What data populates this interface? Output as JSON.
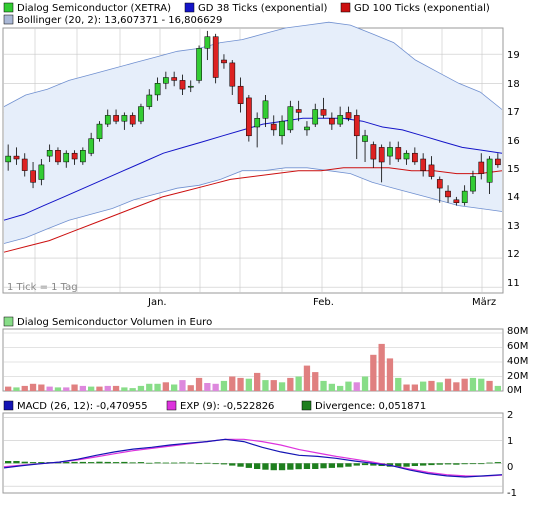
{
  "colors": {
    "candle_up": "#33cc33",
    "candle_down": "#dd2222",
    "gd38": "#1414c8",
    "gd100": "#cc1010",
    "band_fill": "#e6eefa",
    "band_line": "#7090d0",
    "vol_up": "#88dd88",
    "vol_down": "#e08080",
    "vol_neutral": "#dd88dd",
    "macd": "#1414b4",
    "exp": "#dd33dd",
    "divergence": "#1e7f1e",
    "grid": "#c8c8c8"
  },
  "price_panel": {
    "legend": [
      {
        "label": "Dialog Semiconductor (XETRA)",
        "color": "#33cc33"
      },
      {
        "label": "GD 38 Ticks (exponential)",
        "color": "#1414c8"
      },
      {
        "label": "GD 100 Ticks (exponential)",
        "color": "#cc1010"
      },
      {
        "label": "Bollinger (20, 2): 13,607371 - 16,806629",
        "color": "#aab8d6"
      }
    ],
    "note": "1 Tick = 1 Tag",
    "y_ticks": [
      "11",
      "12",
      "13",
      "14",
      "15",
      "16",
      "17",
      "18",
      "19"
    ],
    "x_ticks": [
      "Jan.",
      "Feb.",
      "März"
    ]
  },
  "volume_panel": {
    "legend": "Dialog Semiconductor Volumen in Euro",
    "y_ticks": [
      "0M",
      "20M",
      "40M",
      "60M",
      "80M"
    ]
  },
  "macd_panel": {
    "legend": [
      {
        "label": "MACD (26, 12): -0,470955",
        "color": "#1414b4"
      },
      {
        "label": "EXP (9): -0,522826",
        "color": "#dd33dd"
      },
      {
        "label": "Divergence: 0,051871",
        "color": "#1e7f1e"
      }
    ],
    "y_ticks": [
      "-1",
      "0",
      "1",
      "2"
    ]
  },
  "chart_data": [
    {
      "type": "candlestick",
      "y_range": [
        10.8,
        19.9
      ],
      "x_ticks": [
        "Jan.",
        "Feb.",
        "März"
      ],
      "ohlc": [
        {
          "o": 15.3,
          "h": 15.9,
          "l": 15.0,
          "c": 15.5
        },
        {
          "o": 15.5,
          "h": 15.8,
          "l": 15.2,
          "c": 15.4
        },
        {
          "o": 15.4,
          "h": 15.6,
          "l": 14.8,
          "c": 15.0
        },
        {
          "o": 15.0,
          "h": 15.3,
          "l": 14.4,
          "c": 14.6
        },
        {
          "o": 14.7,
          "h": 15.4,
          "l": 14.5,
          "c": 15.2
        },
        {
          "o": 15.5,
          "h": 15.9,
          "l": 15.3,
          "c": 15.7
        },
        {
          "o": 15.7,
          "h": 15.8,
          "l": 15.2,
          "c": 15.3
        },
        {
          "o": 15.3,
          "h": 15.7,
          "l": 15.1,
          "c": 15.6
        },
        {
          "o": 15.6,
          "h": 15.7,
          "l": 15.2,
          "c": 15.4
        },
        {
          "o": 15.3,
          "h": 15.8,
          "l": 15.2,
          "c": 15.7
        },
        {
          "o": 15.6,
          "h": 16.3,
          "l": 15.5,
          "c": 16.1
        },
        {
          "o": 16.1,
          "h": 16.7,
          "l": 16.0,
          "c": 16.6
        },
        {
          "o": 16.6,
          "h": 17.1,
          "l": 16.5,
          "c": 16.9
        },
        {
          "o": 16.9,
          "h": 17.1,
          "l": 16.6,
          "c": 16.7
        },
        {
          "o": 16.7,
          "h": 17.0,
          "l": 16.4,
          "c": 16.9
        },
        {
          "o": 16.9,
          "h": 17.0,
          "l": 16.5,
          "c": 16.6
        },
        {
          "o": 16.7,
          "h": 17.3,
          "l": 16.6,
          "c": 17.2
        },
        {
          "o": 17.2,
          "h": 17.8,
          "l": 17.1,
          "c": 17.6
        },
        {
          "o": 17.6,
          "h": 18.2,
          "l": 17.4,
          "c": 18.0
        },
        {
          "o": 18.0,
          "h": 18.4,
          "l": 17.8,
          "c": 18.2
        },
        {
          "o": 18.2,
          "h": 18.4,
          "l": 17.9,
          "c": 18.1
        },
        {
          "o": 18.1,
          "h": 18.3,
          "l": 17.6,
          "c": 17.8
        },
        {
          "o": 17.9,
          "h": 18.1,
          "l": 17.7,
          "c": 17.9
        },
        {
          "o": 18.1,
          "h": 19.3,
          "l": 18.0,
          "c": 19.2
        },
        {
          "o": 19.2,
          "h": 19.8,
          "l": 18.8,
          "c": 19.6
        },
        {
          "o": 19.6,
          "h": 19.7,
          "l": 18.0,
          "c": 18.2
        },
        {
          "o": 18.8,
          "h": 19.0,
          "l": 18.5,
          "c": 18.7
        },
        {
          "o": 18.7,
          "h": 18.8,
          "l": 17.6,
          "c": 17.9
        },
        {
          "o": 17.9,
          "h": 18.2,
          "l": 17.0,
          "c": 17.3
        },
        {
          "o": 17.5,
          "h": 17.6,
          "l": 16.0,
          "c": 16.2
        },
        {
          "o": 16.5,
          "h": 17.0,
          "l": 15.8,
          "c": 16.8
        },
        {
          "o": 16.8,
          "h": 17.6,
          "l": 16.5,
          "c": 17.4
        },
        {
          "o": 16.6,
          "h": 16.9,
          "l": 16.2,
          "c": 16.4
        },
        {
          "o": 16.2,
          "h": 16.9,
          "l": 15.9,
          "c": 16.7
        },
        {
          "o": 16.4,
          "h": 17.4,
          "l": 16.3,
          "c": 17.2
        },
        {
          "o": 17.1,
          "h": 17.4,
          "l": 16.7,
          "c": 17.0
        },
        {
          "o": 16.4,
          "h": 16.7,
          "l": 16.2,
          "c": 16.5
        },
        {
          "o": 16.6,
          "h": 17.3,
          "l": 16.5,
          "c": 17.1
        },
        {
          "o": 17.1,
          "h": 17.5,
          "l": 16.8,
          "c": 16.9
        },
        {
          "o": 16.8,
          "h": 17.0,
          "l": 16.4,
          "c": 16.6
        },
        {
          "o": 16.6,
          "h": 17.2,
          "l": 16.5,
          "c": 16.9
        },
        {
          "o": 17.0,
          "h": 17.2,
          "l": 16.7,
          "c": 16.8
        },
        {
          "o": 16.9,
          "h": 17.1,
          "l": 15.4,
          "c": 16.2
        },
        {
          "o": 16.0,
          "h": 16.4,
          "l": 15.3,
          "c": 16.2
        },
        {
          "o": 15.9,
          "h": 16.0,
          "l": 15.1,
          "c": 15.4
        },
        {
          "o": 15.8,
          "h": 15.9,
          "l": 14.6,
          "c": 15.3
        },
        {
          "o": 15.5,
          "h": 16.0,
          "l": 15.2,
          "c": 15.8
        },
        {
          "o": 15.8,
          "h": 16.0,
          "l": 15.3,
          "c": 15.4
        },
        {
          "o": 15.4,
          "h": 15.7,
          "l": 15.2,
          "c": 15.6
        },
        {
          "o": 15.6,
          "h": 15.8,
          "l": 15.2,
          "c": 15.3
        },
        {
          "o": 15.4,
          "h": 15.6,
          "l": 14.8,
          "c": 15.0
        },
        {
          "o": 15.2,
          "h": 15.5,
          "l": 14.7,
          "c": 14.8
        },
        {
          "o": 14.7,
          "h": 14.8,
          "l": 13.9,
          "c": 14.4
        },
        {
          "o": 14.3,
          "h": 14.5,
          "l": 13.9,
          "c": 14.1
        },
        {
          "o": 14.0,
          "h": 14.1,
          "l": 13.8,
          "c": 13.9
        },
        {
          "o": 13.9,
          "h": 14.5,
          "l": 13.8,
          "c": 14.3
        },
        {
          "o": 14.3,
          "h": 15.0,
          "l": 14.2,
          "c": 14.8
        },
        {
          "o": 15.3,
          "h": 15.6,
          "l": 14.7,
          "c": 14.9
        },
        {
          "o": 14.6,
          "h": 15.5,
          "l": 14.2,
          "c": 15.4
        },
        {
          "o": 15.4,
          "h": 15.6,
          "l": 15.1,
          "c": 15.2
        }
      ],
      "bollinger_upper": [
        17.2,
        17.6,
        17.8,
        18.1,
        18.3,
        18.5,
        18.7,
        18.9,
        19.1,
        19.2,
        19.4,
        19.5,
        19.7,
        19.9,
        20.0,
        20.1,
        20.0,
        19.7,
        19.4,
        18.8,
        18.4,
        18.0,
        17.7,
        17.1
      ],
      "bollinger_lower": [
        12.5,
        12.7,
        13.0,
        13.3,
        13.5,
        13.7,
        14.0,
        14.2,
        14.4,
        14.5,
        14.7,
        15.0,
        15.0,
        15.1,
        15.1,
        15.0,
        14.9,
        14.6,
        14.4,
        14.2,
        14.0,
        13.8,
        13.7,
        13.6
      ],
      "gd38": [
        13.3,
        13.5,
        13.8,
        14.1,
        14.4,
        14.7,
        15.0,
        15.3,
        15.6,
        15.8,
        16.0,
        16.2,
        16.4,
        16.6,
        16.7,
        16.8,
        16.8,
        16.8,
        16.7,
        16.5,
        16.4,
        16.2,
        16.0,
        15.8,
        15.7,
        15.6
      ],
      "gd100": [
        12.2,
        12.4,
        12.6,
        12.9,
        13.2,
        13.5,
        13.8,
        14.1,
        14.3,
        14.5,
        14.7,
        14.8,
        14.9,
        15.0,
        15.0,
        15.1,
        15.1,
        15.1,
        15.0,
        15.0,
        14.9,
        14.9,
        15.0
      ]
    },
    {
      "type": "bar",
      "y_range": [
        0,
        80
      ],
      "unit": "M EUR",
      "values": [
        6,
        5,
        7,
        10,
        9,
        6,
        5,
        5,
        9,
        7,
        6,
        6,
        7,
        7,
        5,
        4,
        7,
        10,
        10,
        12,
        9,
        15,
        8,
        18,
        11,
        10,
        14,
        20,
        18,
        17,
        25,
        15,
        15,
        12,
        18,
        20,
        35,
        26,
        14,
        10,
        7,
        13,
        12,
        20,
        50,
        65,
        45,
        18,
        9,
        9,
        13,
        14,
        12,
        17,
        12,
        17,
        18,
        17,
        14,
        7
      ],
      "colors": [
        "d",
        "u",
        "d",
        "d",
        "d",
        "n",
        "u",
        "n",
        "d",
        "n",
        "u",
        "d",
        "n",
        "d",
        "u",
        "u",
        "u",
        "u",
        "u",
        "d",
        "u",
        "n",
        "d",
        "d",
        "n",
        "n",
        "u",
        "d",
        "d",
        "u",
        "d",
        "u",
        "d",
        "u",
        "d",
        "u",
        "d",
        "d",
        "u",
        "u",
        "u",
        "u",
        "n",
        "u",
        "d",
        "d",
        "d",
        "u",
        "d",
        "d",
        "u",
        "d",
        "u",
        "d",
        "d",
        "d",
        "u",
        "u",
        "d",
        "u"
      ]
    },
    {
      "type": "line",
      "y_range": [
        -1.3,
        2.2
      ],
      "series": [
        {
          "name": "MACD (26, 12): -0,470955",
          "values": [
            -0.2,
            -0.1,
            -0.02,
            0.05,
            0.18,
            0.35,
            0.5,
            0.62,
            0.7,
            0.8,
            0.88,
            0.95,
            1.05,
            0.95,
            0.7,
            0.5,
            0.35,
            0.3,
            0.22,
            0.1,
            0.0,
            -0.1,
            -0.3,
            -0.45,
            -0.55,
            -0.6,
            -0.55,
            -0.5
          ]
        },
        {
          "name": "EXP (9): -0,522826",
          "values": [
            -0.15,
            -0.08,
            -0.02,
            0.05,
            0.15,
            0.28,
            0.42,
            0.55,
            0.65,
            0.75,
            0.85,
            0.95,
            1.05,
            1.05,
            0.95,
            0.8,
            0.6,
            0.45,
            0.3,
            0.18,
            0.05,
            -0.1,
            -0.25,
            -0.4,
            -0.5,
            -0.55,
            -0.56,
            -0.52
          ]
        }
      ],
      "divergence": [
        0.1,
        0.1,
        0.07,
        0.05,
        0.05,
        0.05,
        0.04,
        0.06,
        0.06,
        0.06,
        0.05,
        0.07,
        0.06,
        0.05,
        0.06,
        0.04,
        0.05,
        0.02,
        0.04,
        0.03,
        0.03,
        0.04,
        0.03,
        0.0,
        0.02,
        -0.02,
        -0.05,
        -0.1,
        -0.15,
        -0.2,
        -0.25,
        -0.28,
        -0.3,
        -0.3,
        -0.28,
        -0.26,
        -0.25,
        -0.25,
        -0.22,
        -0.2,
        -0.18,
        -0.15,
        -0.1,
        -0.08,
        -0.1,
        -0.12,
        -0.15,
        -0.16,
        -0.15,
        -0.12,
        -0.1,
        -0.08,
        -0.06,
        -0.05,
        -0.06,
        -0.04,
        -0.02,
        0.0,
        0.03,
        0.05
      ]
    }
  ]
}
